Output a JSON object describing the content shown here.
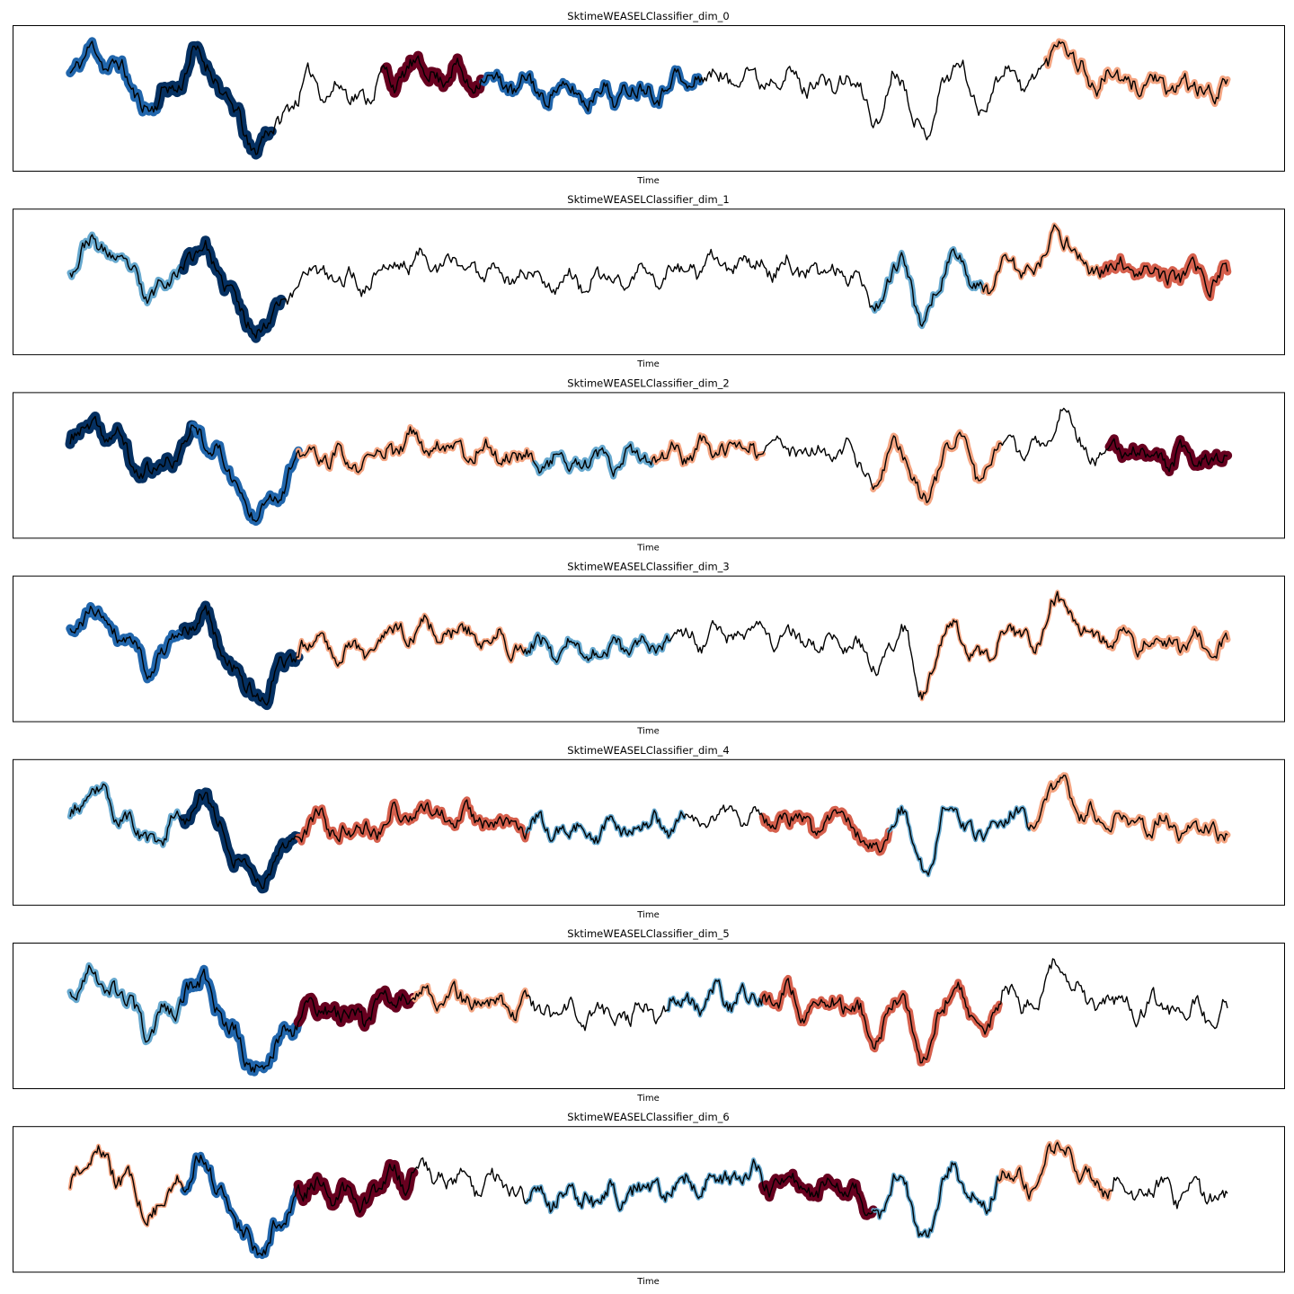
{
  "chart_data": [
    {
      "type": "line",
      "title": "SktimeWEASELClassifier_dim_0",
      "xlabel": "Time",
      "ylabel": "",
      "grid": false,
      "seed": 11,
      "segments": [
        {
          "range": [
            0,
            56
          ],
          "importance": -0.8
        },
        {
          "range": [
            56,
            128
          ],
          "importance": -1.0
        },
        {
          "range": [
            128,
            200
          ],
          "importance": 0.0
        },
        {
          "range": [
            200,
            262
          ],
          "importance": 1.0
        },
        {
          "range": [
            262,
            400
          ],
          "importance": -0.6
        },
        {
          "range": [
            400,
            480
          ],
          "importance": 0.0
        },
        {
          "range": [
            480,
            520
          ],
          "importance": 0.0
        },
        {
          "range": [
            520,
            620
          ],
          "importance": 0.05
        },
        {
          "range": [
            620,
            735
          ],
          "importance": 0.5
        }
      ]
    },
    {
      "type": "line",
      "title": "SktimeWEASELClassifier_dim_1",
      "xlabel": "Time",
      "ylabel": "",
      "grid": false,
      "seed": 23,
      "segments": [
        {
          "range": [
            0,
            72
          ],
          "importance": -0.5
        },
        {
          "range": [
            72,
            134
          ],
          "importance": -1.0
        },
        {
          "range": [
            134,
            320
          ],
          "importance": 0.1
        },
        {
          "range": [
            320,
            510
          ],
          "importance": 0.0
        },
        {
          "range": [
            510,
            580
          ],
          "importance": -0.4
        },
        {
          "range": [
            580,
            655
          ],
          "importance": 0.3
        },
        {
          "range": [
            655,
            735
          ],
          "importance": 0.7
        }
      ]
    },
    {
      "type": "line",
      "title": "SktimeWEASELClassifier_dim_2",
      "xlabel": "Time",
      "ylabel": "",
      "grid": false,
      "seed": 37,
      "segments": [
        {
          "range": [
            0,
            78
          ],
          "importance": -1.0
        },
        {
          "range": [
            78,
            145
          ],
          "importance": -0.8
        },
        {
          "range": [
            145,
            295
          ],
          "importance": 0.4
        },
        {
          "range": [
            295,
            370
          ],
          "importance": -0.5
        },
        {
          "range": [
            370,
            440
          ],
          "importance": 0.4
        },
        {
          "range": [
            440,
            510
          ],
          "importance": 0.0
        },
        {
          "range": [
            510,
            590
          ],
          "importance": 0.5
        },
        {
          "range": [
            590,
            660
          ],
          "importance": 0.0
        },
        {
          "range": [
            660,
            735
          ],
          "importance": 0.9
        }
      ]
    },
    {
      "type": "line",
      "title": "SktimeWEASELClassifier_dim_3",
      "xlabel": "Time",
      "ylabel": "",
      "grid": false,
      "seed": 41,
      "segments": [
        {
          "range": [
            0,
            72
          ],
          "importance": -0.8
        },
        {
          "range": [
            72,
            145
          ],
          "importance": -1.0
        },
        {
          "range": [
            145,
            290
          ],
          "importance": 0.3
        },
        {
          "range": [
            290,
            380
          ],
          "importance": -0.4
        },
        {
          "range": [
            380,
            540
          ],
          "importance": 0.0
        },
        {
          "range": [
            540,
            660
          ],
          "importance": 0.2
        },
        {
          "range": [
            660,
            735
          ],
          "importance": 0.5
        }
      ]
    },
    {
      "type": "line",
      "title": "SktimeWEASELClassifier_dim_4",
      "xlabel": "Time",
      "ylabel": "",
      "grid": false,
      "seed": 53,
      "segments": [
        {
          "range": [
            0,
            72
          ],
          "importance": -0.4
        },
        {
          "range": [
            72,
            145
          ],
          "importance": -1.0
        },
        {
          "range": [
            145,
            290
          ],
          "importance": 0.6
        },
        {
          "range": [
            290,
            390
          ],
          "importance": -0.2
        },
        {
          "range": [
            390,
            440
          ],
          "importance": 0.0
        },
        {
          "range": [
            440,
            520
          ],
          "importance": 0.7
        },
        {
          "range": [
            520,
            610
          ],
          "importance": -0.2
        },
        {
          "range": [
            610,
            735
          ],
          "importance": 0.5
        }
      ]
    },
    {
      "type": "line",
      "title": "SktimeWEASELClassifier_dim_5",
      "xlabel": "Time",
      "ylabel": "",
      "grid": false,
      "seed": 67,
      "segments": [
        {
          "range": [
            0,
            72
          ],
          "importance": -0.5
        },
        {
          "range": [
            72,
            145
          ],
          "importance": -0.8
        },
        {
          "range": [
            145,
            218
          ],
          "importance": 1.0
        },
        {
          "range": [
            218,
            290
          ],
          "importance": 0.4
        },
        {
          "range": [
            290,
            380
          ],
          "importance": 0.0
        },
        {
          "range": [
            380,
            440
          ],
          "importance": -0.2
        },
        {
          "range": [
            440,
            590
          ],
          "importance": 0.6
        },
        {
          "range": [
            590,
            735
          ],
          "importance": 0.0
        }
      ]
    },
    {
      "type": "line",
      "title": "SktimeWEASELClassifier_dim_6",
      "xlabel": "Time",
      "ylabel": "",
      "grid": false,
      "seed": 79,
      "segments": [
        {
          "range": [
            0,
            72
          ],
          "importance": 0.2
        },
        {
          "range": [
            72,
            145
          ],
          "importance": -0.6
        },
        {
          "range": [
            145,
            218
          ],
          "importance": 1.0
        },
        {
          "range": [
            218,
            290
          ],
          "importance": 0.0
        },
        {
          "range": [
            290,
            440
          ],
          "importance": -0.2
        },
        {
          "range": [
            440,
            510
          ],
          "importance": 0.9
        },
        {
          "range": [
            510,
            590
          ],
          "importance": -0.2
        },
        {
          "range": [
            590,
            660
          ],
          "importance": 0.4
        },
        {
          "range": [
            660,
            735
          ],
          "importance": 0.0
        }
      ]
    }
  ],
  "colors": {
    "background": "#ffffff",
    "axes_edge": "#000000",
    "series_line": "#000000",
    "negative_strong": "#053061",
    "negative_mid": "#2166ac",
    "negative_light": "#67a9cf",
    "neutral": "#f7f7f7",
    "positive_light": "#f4a582",
    "positive_mid": "#d6604d",
    "positive_strong": "#67001f"
  },
  "colormap": "RdBu_r"
}
